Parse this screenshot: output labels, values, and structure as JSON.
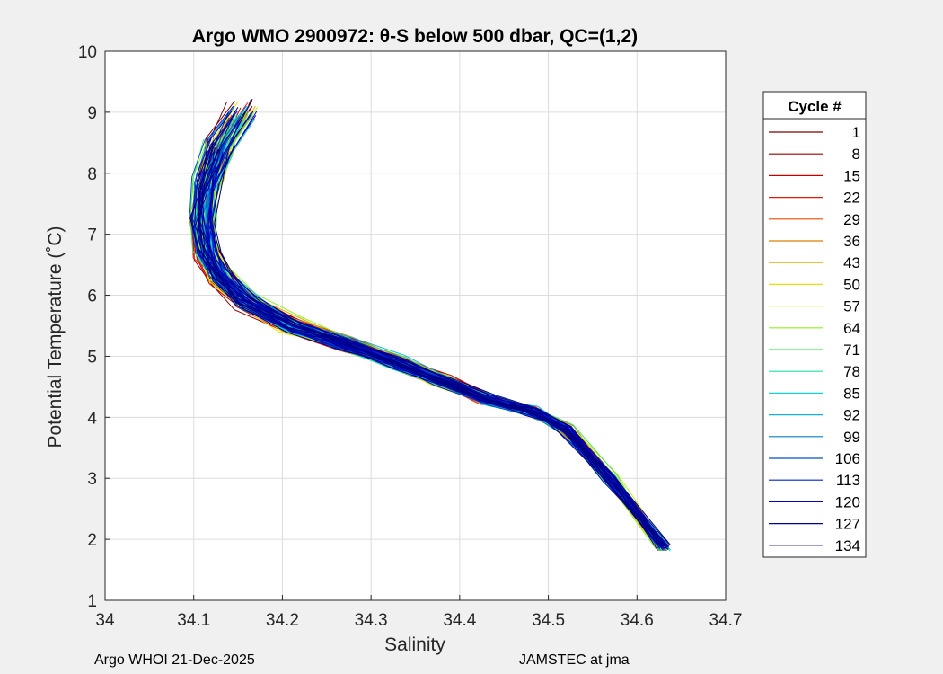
{
  "chart_data": {
    "type": "line",
    "title": "Argo WMO 2900972: θ-S below 500 dbar,  QC=(1,2)",
    "xlabel": "Salinity",
    "ylabel": "Potential Temperature (˚C)",
    "xlim": [
      34.0,
      34.7
    ],
    "ylim": [
      1,
      10
    ],
    "xticks": [
      "34",
      "34.1",
      "34.2",
      "34.3",
      "34.4",
      "34.5",
      "34.6",
      "34.7"
    ],
    "yticks": [
      "1",
      "2",
      "3",
      "4",
      "5",
      "6",
      "7",
      "8",
      "9",
      "10"
    ],
    "grid": true,
    "legend": {
      "title": "Cycle #",
      "position": "outside-right",
      "entries": [
        {
          "label": "1",
          "color": "#800000"
        },
        {
          "label": "8",
          "color": "#9a0000"
        },
        {
          "label": "15",
          "color": "#c40000"
        },
        {
          "label": "22",
          "color": "#e61a00"
        },
        {
          "label": "29",
          "color": "#f04a00"
        },
        {
          "label": "36",
          "color": "#d98000"
        },
        {
          "label": "43",
          "color": "#d9b000"
        },
        {
          "label": "50",
          "color": "#e8e000"
        },
        {
          "label": "57",
          "color": "#c8f000"
        },
        {
          "label": "64",
          "color": "#90ee20"
        },
        {
          "label": "71",
          "color": "#40e860"
        },
        {
          "label": "78",
          "color": "#20e0a0"
        },
        {
          "label": "85",
          "color": "#10d8d0"
        },
        {
          "label": "92",
          "color": "#10b0e8"
        },
        {
          "label": "99",
          "color": "#0080c0"
        },
        {
          "label": "106",
          "color": "#0050c8"
        },
        {
          "label": "113",
          "color": "#0020d0"
        },
        {
          "label": "120",
          "color": "#0000c0"
        },
        {
          "label": "127",
          "color": "#00009a"
        },
        {
          "label": "134",
          "color": "#000080"
        }
      ]
    },
    "reference_profile": {
      "salinity": [
        34.175,
        34.155,
        34.13,
        34.115,
        34.11,
        34.115,
        34.13,
        34.16,
        34.21,
        34.27,
        34.33,
        34.38,
        34.43,
        34.48,
        34.52,
        34.57,
        34.63
      ],
      "temperature": [
        9.6,
        9.0,
        8.4,
        7.8,
        7.2,
        6.7,
        6.3,
        5.9,
        5.5,
        5.2,
        4.9,
        4.6,
        4.3,
        4.1,
        3.8,
        3.0,
        1.87
      ]
    }
  },
  "footer": {
    "left": "Argo WHOI 21-Dec-2025",
    "right": "JAMSTEC at jma"
  }
}
